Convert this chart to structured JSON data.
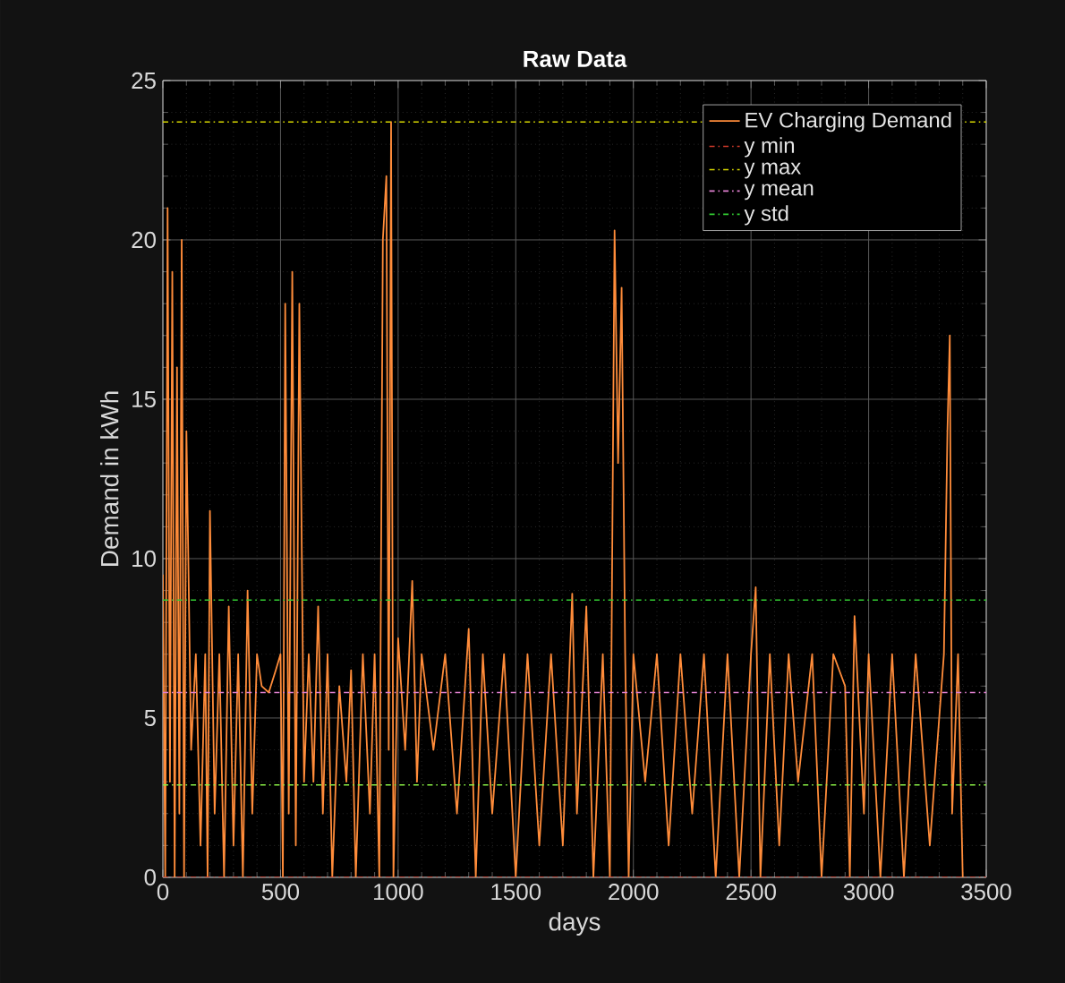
{
  "chart_data": {
    "type": "line",
    "title": "Raw Data",
    "xlabel": "days",
    "ylabel": "Demand in kWh",
    "xlim": [
      0,
      3500
    ],
    "xticks": [
      0,
      500,
      1000,
      1500,
      2000,
      2500,
      3000,
      3500
    ],
    "ylim": [
      0,
      25
    ],
    "yticks": [
      0,
      5,
      10,
      15,
      20,
      25
    ],
    "grid": true,
    "legend": "top right",
    "line_style": "solid",
    "series": [
      {
        "name": "EV Charging Demand",
        "color": "#ff8c3a",
        "x": [
          0,
          10,
          20,
          30,
          40,
          50,
          60,
          70,
          80,
          90,
          100,
          120,
          140,
          160,
          180,
          190,
          200,
          220,
          240,
          260,
          280,
          300,
          320,
          340,
          360,
          380,
          400,
          420,
          450,
          480,
          500,
          510,
          520,
          535,
          550,
          565,
          580,
          600,
          620,
          640,
          660,
          680,
          700,
          720,
          750,
          780,
          800,
          820,
          850,
          880,
          900,
          920,
          935,
          950,
          960,
          970,
          980,
          1000,
          1030,
          1060,
          1080,
          1100,
          1150,
          1200,
          1250,
          1300,
          1330,
          1360,
          1400,
          1450,
          1500,
          1550,
          1600,
          1650,
          1700,
          1740,
          1760,
          1800,
          1830,
          1870,
          1900,
          1920,
          1935,
          1950,
          1965,
          1980,
          2000,
          2050,
          2100,
          2150,
          2200,
          2250,
          2300,
          2350,
          2400,
          2450,
          2500,
          2520,
          2540,
          2580,
          2620,
          2660,
          2700,
          2760,
          2800,
          2850,
          2900,
          2920,
          2940,
          2980,
          3000,
          3050,
          3100,
          3150,
          3200,
          3260,
          3320,
          3335,
          3345,
          3355,
          3380,
          3400
        ],
        "values": [
          9.5,
          0,
          21,
          3,
          19,
          0,
          16,
          2,
          20,
          0,
          14,
          4,
          7,
          1,
          7,
          0,
          11.5,
          2,
          7,
          0,
          8.5,
          1,
          7,
          0,
          9,
          2,
          7,
          6,
          5.8,
          6.5,
          7,
          0,
          18,
          2,
          19,
          1,
          18,
          3,
          7,
          3,
          8.5,
          2,
          7,
          0,
          6,
          3,
          6.5,
          0,
          7,
          2,
          7,
          0,
          20,
          22,
          4,
          23.7,
          0,
          7.5,
          4,
          9.3,
          3,
          7,
          4,
          7,
          2,
          7.8,
          0,
          7,
          2,
          7,
          0,
          7,
          1,
          7,
          1,
          8.9,
          2,
          8.5,
          0,
          7,
          0,
          20.3,
          13,
          18.5,
          7,
          0,
          7,
          3,
          7,
          1,
          7,
          2,
          7,
          0,
          7,
          0,
          7,
          9.1,
          0,
          7,
          1,
          7,
          3,
          7,
          0,
          7,
          6,
          0,
          8.2,
          2,
          7,
          0,
          7,
          0,
          7,
          1,
          7,
          14,
          17,
          2,
          7,
          0
        ]
      }
    ],
    "ref_lines": [
      {
        "axis": "y",
        "value": 0,
        "label": "y min",
        "color": "#d03a2a",
        "line_style": "dashdot"
      },
      {
        "axis": "y",
        "value": 23.7,
        "label": "y max",
        "color": "#d8d800",
        "line_style": "dashdot"
      },
      {
        "axis": "y",
        "value": 5.8,
        "label": "y mean",
        "color": "#e080d0",
        "line_style": "dashdot"
      },
      {
        "axis": "y",
        "value": 8.7,
        "label": "y std",
        "color": "#33cc33",
        "line_style": "dashdot"
      },
      {
        "axis": "y",
        "value": 2.9,
        "label": null,
        "color": "#88ee44",
        "line_style": "dashdot"
      }
    ]
  }
}
